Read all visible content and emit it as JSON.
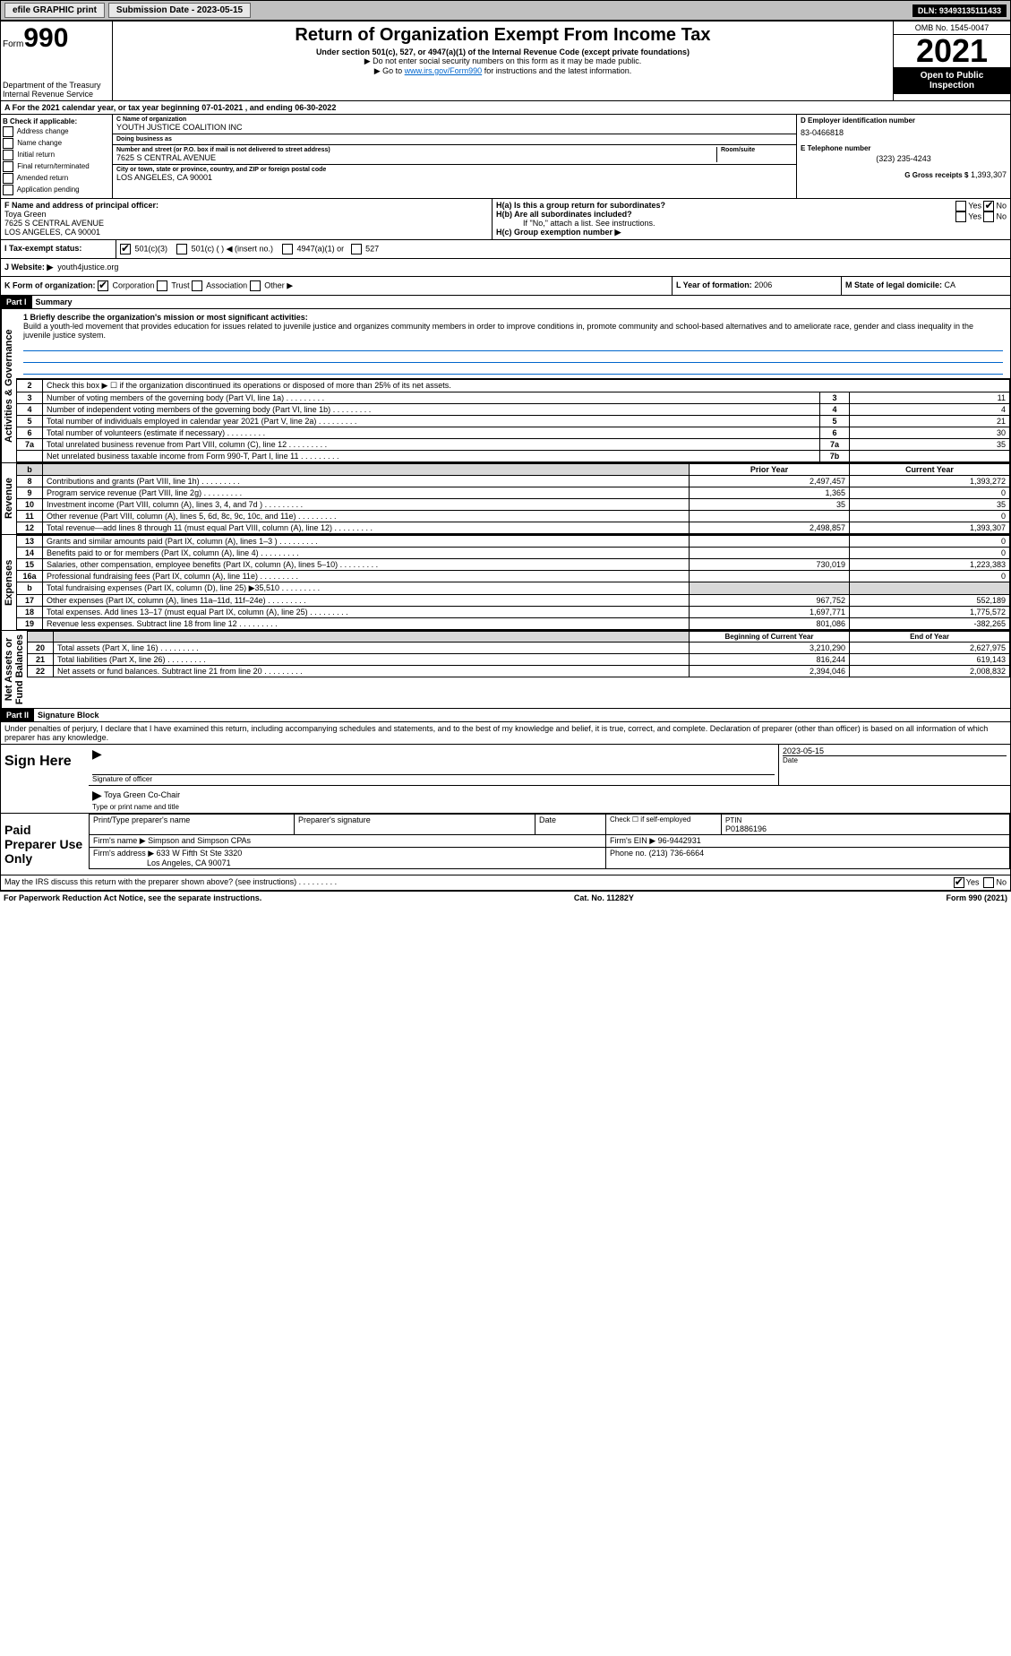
{
  "topbar": {
    "efile": "efile GRAPHIC print",
    "submission": "Submission Date - 2023-05-15",
    "dln": "DLN: 93493135111433"
  },
  "header": {
    "form_label": "Form",
    "form_num": "990",
    "title": "Return of Organization Exempt From Income Tax",
    "subtitle": "Under section 501(c), 527, or 4947(a)(1) of the Internal Revenue Code (except private foundations)",
    "note1": "▶ Do not enter social security numbers on this form as it may be made public.",
    "note2_pre": "▶ Go to ",
    "note2_link": "www.irs.gov/Form990",
    "note2_post": " for instructions and the latest information.",
    "dept": "Department of the Treasury\nInternal Revenue Service",
    "omb": "OMB No. 1545-0047",
    "year": "2021",
    "open": "Open to Public\nInspection"
  },
  "section_a": "A For the 2021 calendar year, or tax year beginning 07-01-2021   , and ending 06-30-2022",
  "section_b_label": "B Check if applicable:",
  "b_items": [
    "Address change",
    "Name change",
    "Initial return",
    "Final return/terminated",
    "Amended return",
    "Application pending"
  ],
  "c": {
    "name_label": "C Name of organization",
    "name": "YOUTH JUSTICE COALITION INC",
    "dba_label": "Doing business as",
    "dba": "",
    "addr_label": "Number and street (or P.O. box if mail is not delivered to street address)",
    "room_label": "Room/suite",
    "addr": "7625 S CENTRAL AVENUE",
    "city_label": "City or town, state or province, country, and ZIP or foreign postal code",
    "city": "LOS ANGELES, CA  90001"
  },
  "d": {
    "label": "D Employer identification number",
    "value": "83-0466818"
  },
  "e": {
    "label": "E Telephone number",
    "value": "(323) 235-4243"
  },
  "g": {
    "label": "G Gross receipts $",
    "value": "1,393,307"
  },
  "f": {
    "label": "F  Name and address of principal officer:",
    "name": "Toya Green",
    "addr1": "7625 S CENTRAL AVENUE",
    "addr2": "LOS ANGELES, CA  90001"
  },
  "h": {
    "a_label": "H(a)  Is this a group return for subordinates?",
    "b_label": "H(b)  Are all subordinates included?",
    "yes": "Yes",
    "no": "No",
    "note": "If \"No,\" attach a list. See instructions.",
    "c_label": "H(c)  Group exemption number ▶"
  },
  "i": {
    "label": "I  Tax-exempt status:",
    "o1": "501(c)(3)",
    "o2": "501(c) (  ) ◀ (insert no.)",
    "o3": "4947(a)(1) or",
    "o4": "527"
  },
  "j": {
    "label": "J  Website: ▶",
    "value": "youth4justice.org"
  },
  "k": {
    "label": "K Form of organization:",
    "o1": "Corporation",
    "o2": "Trust",
    "o3": "Association",
    "o4": "Other ▶"
  },
  "l": {
    "label": "L Year of formation:",
    "value": "2006"
  },
  "m": {
    "label": "M State of legal domicile:",
    "value": "CA"
  },
  "part1": {
    "title": "Part I",
    "name": "Summary",
    "line1_label": "1 Briefly describe the organization's mission or most significant activities:",
    "mission": "Build a youth-led movement that provides education for issues related to juvenile justice and organizes community members in order to improve conditions in, promote community and school-based alternatives and to ameliorate race, gender and class inequality in the juvenile justice system.",
    "line2": "Check this box ▶ ☐  if the organization discontinued its operations or disposed of more than 25% of its net assets.",
    "rows_gov": [
      {
        "n": "3",
        "t": "Number of voting members of the governing body (Part VI, line 1a)",
        "box": "3",
        "v": "11"
      },
      {
        "n": "4",
        "t": "Number of independent voting members of the governing body (Part VI, line 1b)",
        "box": "4",
        "v": "4"
      },
      {
        "n": "5",
        "t": "Total number of individuals employed in calendar year 2021 (Part V, line 2a)",
        "box": "5",
        "v": "21"
      },
      {
        "n": "6",
        "t": "Total number of volunteers (estimate if necessary)",
        "box": "6",
        "v": "30"
      },
      {
        "n": "7a",
        "t": "Total unrelated business revenue from Part VIII, column (C), line 12",
        "box": "7a",
        "v": "35"
      },
      {
        "n": "",
        "t": "Net unrelated business taxable income from Form 990-T, Part I, line 11",
        "box": "7b",
        "v": ""
      }
    ],
    "pycy_header": {
      "py": "Prior Year",
      "cy": "Current Year"
    },
    "rows_rev": [
      {
        "n": "8",
        "t": "Contributions and grants (Part VIII, line 1h)",
        "py": "2,497,457",
        "cy": "1,393,272"
      },
      {
        "n": "9",
        "t": "Program service revenue (Part VIII, line 2g)",
        "py": "1,365",
        "cy": "0"
      },
      {
        "n": "10",
        "t": "Investment income (Part VIII, column (A), lines 3, 4, and 7d )",
        "py": "35",
        "cy": "35"
      },
      {
        "n": "11",
        "t": "Other revenue (Part VIII, column (A), lines 5, 6d, 8c, 9c, 10c, and 11e)",
        "py": "",
        "cy": "0"
      },
      {
        "n": "12",
        "t": "Total revenue—add lines 8 through 11 (must equal Part VIII, column (A), line 12)",
        "py": "2,498,857",
        "cy": "1,393,307"
      }
    ],
    "rows_exp": [
      {
        "n": "13",
        "t": "Grants and similar amounts paid (Part IX, column (A), lines 1–3 )",
        "py": "",
        "cy": "0"
      },
      {
        "n": "14",
        "t": "Benefits paid to or for members (Part IX, column (A), line 4)",
        "py": "",
        "cy": "0"
      },
      {
        "n": "15",
        "t": "Salaries, other compensation, employee benefits (Part IX, column (A), lines 5–10)",
        "py": "730,019",
        "cy": "1,223,383"
      },
      {
        "n": "16a",
        "t": "Professional fundraising fees (Part IX, column (A), line 11e)",
        "py": "",
        "cy": "0"
      },
      {
        "n": "b",
        "t": "Total fundraising expenses (Part IX, column (D), line 25) ▶35,510",
        "py": "__grey__",
        "cy": "__grey__"
      },
      {
        "n": "17",
        "t": "Other expenses (Part IX, column (A), lines 11a–11d, 11f–24e)",
        "py": "967,752",
        "cy": "552,189"
      },
      {
        "n": "18",
        "t": "Total expenses. Add lines 13–17 (must equal Part IX, column (A), line 25)",
        "py": "1,697,771",
        "cy": "1,775,572"
      },
      {
        "n": "19",
        "t": "Revenue less expenses. Subtract line 18 from line 12",
        "py": "801,086",
        "cy": "-382,265"
      }
    ],
    "na_header": {
      "py": "Beginning of Current Year",
      "cy": "End of Year"
    },
    "rows_na": [
      {
        "n": "20",
        "t": "Total assets (Part X, line 16)",
        "py": "3,210,290",
        "cy": "2,627,975"
      },
      {
        "n": "21",
        "t": "Total liabilities (Part X, line 26)",
        "py": "816,244",
        "cy": "619,143"
      },
      {
        "n": "22",
        "t": "Net assets or fund balances. Subtract line 21 from line 20",
        "py": "2,394,046",
        "cy": "2,008,832"
      }
    ],
    "side_labels": {
      "gov": "Activities & Governance",
      "rev": "Revenue",
      "exp": "Expenses",
      "na": "Net Assets or\nFund Balances"
    }
  },
  "part2": {
    "title": "Part II",
    "name": "Signature Block",
    "perjury": "Under penalties of perjury, I declare that I have examined this return, including accompanying schedules and statements, and to the best of my knowledge and belief, it is true, correct, and complete. Declaration of preparer (other than officer) is based on all information of which preparer has any knowledge.",
    "sign_here": "Sign Here",
    "sig_officer": "Signature of officer",
    "sig_date": "2023-05-15",
    "sig_date_label": "Date",
    "sig_name": "Toya Green Co-Chair",
    "sig_name_label": "Type or print name and title",
    "paid_prep": "Paid Preparer Use Only",
    "prep_name_label": "Print/Type preparer's name",
    "prep_sig_label": "Preparer's signature",
    "date_label": "Date",
    "check_self": "Check ☐ if self-employed",
    "ptin_label": "PTIN",
    "ptin": "P01886196",
    "firm_name_label": "Firm's name    ▶",
    "firm_name": "Simpson and Simpson CPAs",
    "firm_ein_label": "Firm's EIN ▶",
    "firm_ein": "96-9442931",
    "firm_addr_label": "Firm's address ▶",
    "firm_addr1": "633 W Fifth St Ste 3320",
    "firm_addr2": "Los Angeles, CA  90071",
    "phone_label": "Phone no.",
    "phone": "(213) 736-6664",
    "may_irs": "May the IRS discuss this return with the preparer shown above? (see instructions)",
    "yes": "Yes",
    "no": "No"
  },
  "footer": {
    "left": "For Paperwork Reduction Act Notice, see the separate instructions.",
    "mid": "Cat. No. 11282Y",
    "right": "Form 990 (2021)"
  }
}
